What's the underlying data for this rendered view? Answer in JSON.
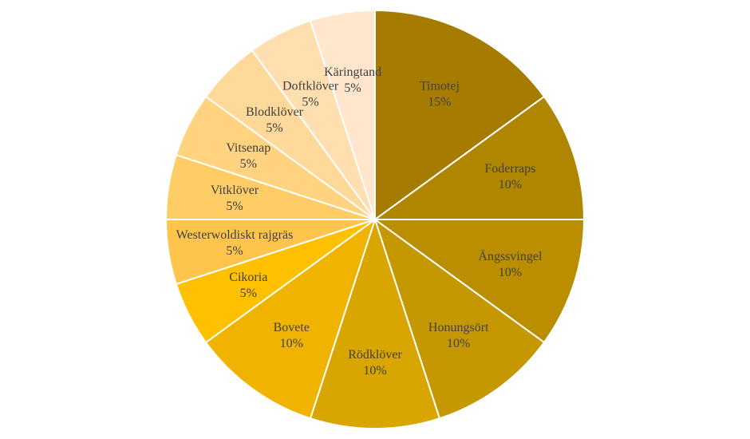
{
  "chart_data": {
    "type": "pie",
    "title": "",
    "start_angle_deg": 0,
    "direction": "clockwise",
    "legend": "none",
    "slices": [
      {
        "label": "Timotej",
        "value": 15,
        "value_label": "15%",
        "color": "#A67C00"
      },
      {
        "label": "Foderraps",
        "value": 10,
        "value_label": "10%",
        "color": "#B08600"
      },
      {
        "label": "Ängssvingel",
        "value": 10,
        "value_label": "10%",
        "color": "#BA8E00"
      },
      {
        "label": "Honungsört",
        "value": 10,
        "value_label": "10%",
        "color": "#C59700"
      },
      {
        "label": "Rödklöver",
        "value": 10,
        "value_label": "10%",
        "color": "#D9A500"
      },
      {
        "label": "Bovete",
        "value": 10,
        "value_label": "10%",
        "color": "#F0B400"
      },
      {
        "label": "Cikoria",
        "value": 5,
        "value_label": "5%",
        "color": "#FFC000"
      },
      {
        "label": "Westerwoldiskt rajgräs",
        "value": 5,
        "value_label": "5%",
        "color": "#FFC44C"
      },
      {
        "label": "Vitklöver",
        "value": 5,
        "value_label": "5%",
        "color": "#FFCC66"
      },
      {
        "label": "Vitsenap",
        "value": 5,
        "value_label": "5%",
        "color": "#FFD37F"
      },
      {
        "label": "Blodklöver",
        "value": 5,
        "value_label": "5%",
        "color": "#FFD999"
      },
      {
        "label": "Doftklöver",
        "value": 5,
        "value_label": "5%",
        "color": "#FFDFB0"
      },
      {
        "label": "Käringtand",
        "value": 5,
        "value_label": "5%",
        "color": "#FFE6CC"
      }
    ]
  }
}
